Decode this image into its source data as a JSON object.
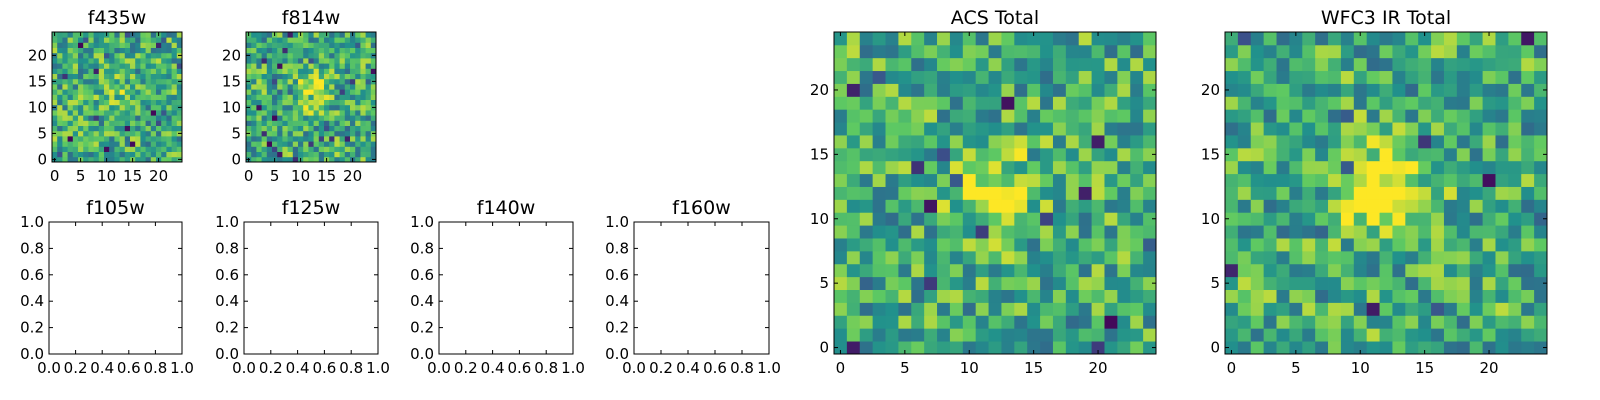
{
  "colormap": [
    "#440154",
    "#3b528b",
    "#21918c",
    "#5ec962",
    "#fde725"
  ],
  "chart_data": [
    {
      "type": "heatmap",
      "title": "f435w",
      "xlabel": "",
      "ylabel": "",
      "xticks": [
        "0",
        "5",
        "10",
        "15",
        "20"
      ],
      "yticks": [
        "0",
        "5",
        "10",
        "15",
        "20"
      ],
      "xlim": [
        -0.5,
        24.5
      ],
      "ylim": [
        -0.5,
        24.5
      ],
      "grid_size": 25,
      "peak": [
        12,
        13
      ],
      "peak_strength": 0.12,
      "seed": 11
    },
    {
      "type": "heatmap",
      "title": "f814w",
      "xlabel": "",
      "ylabel": "",
      "xticks": [
        "0",
        "5",
        "10",
        "15",
        "20"
      ],
      "yticks": [
        "0",
        "5",
        "10",
        "15",
        "20"
      ],
      "xlim": [
        -0.5,
        24.5
      ],
      "ylim": [
        -0.5,
        24.5
      ],
      "grid_size": 25,
      "peak": [
        12,
        13
      ],
      "peak_strength": 0.35,
      "seed": 23
    },
    {
      "type": "heatmap",
      "title": "ACS Total",
      "xlabel": "",
      "ylabel": "",
      "xticks": [
        "0",
        "5",
        "10",
        "15",
        "20"
      ],
      "yticks": [
        "0",
        "5",
        "10",
        "15",
        "20"
      ],
      "xlim": [
        -0.5,
        24.5
      ],
      "ylim": [
        -0.5,
        24.5
      ],
      "grid_size": 25,
      "peak": [
        12,
        12
      ],
      "peak_strength": 0.35,
      "seed": 37
    },
    {
      "type": "heatmap",
      "title": "WFC3 IR Total",
      "xlabel": "",
      "ylabel": "",
      "xticks": [
        "0",
        "5",
        "10",
        "15",
        "20"
      ],
      "yticks": [
        "0",
        "5",
        "10",
        "15",
        "20"
      ],
      "xlim": [
        -0.5,
        24.5
      ],
      "ylim": [
        -0.5,
        24.5
      ],
      "grid_size": 25,
      "peak": [
        12,
        12
      ],
      "peak_strength": 0.55,
      "seed": 53
    },
    {
      "type": "empty",
      "title": "f105w",
      "xticks": [
        "0.0",
        "0.2",
        "0.4",
        "0.6",
        "0.8",
        "1.0"
      ],
      "yticks": [
        "0.0",
        "0.2",
        "0.4",
        "0.6",
        "0.8",
        "1.0"
      ],
      "xlim": [
        0,
        1
      ],
      "ylim": [
        0,
        1
      ]
    },
    {
      "type": "empty",
      "title": "f125w",
      "xticks": [
        "0.0",
        "0.2",
        "0.4",
        "0.6",
        "0.8",
        "1.0"
      ],
      "yticks": [
        "0.0",
        "0.2",
        "0.4",
        "0.6",
        "0.8",
        "1.0"
      ],
      "xlim": [
        0,
        1
      ],
      "ylim": [
        0,
        1
      ]
    },
    {
      "type": "empty",
      "title": "f140w",
      "xticks": [
        "0.0",
        "0.2",
        "0.4",
        "0.6",
        "0.8",
        "1.0"
      ],
      "yticks": [
        "0.0",
        "0.2",
        "0.4",
        "0.6",
        "0.8",
        "1.0"
      ],
      "xlim": [
        0,
        1
      ],
      "ylim": [
        0,
        1
      ]
    },
    {
      "type": "empty",
      "title": "f160w",
      "xticks": [
        "0.0",
        "0.2",
        "0.4",
        "0.6",
        "0.8",
        "1.0"
      ],
      "yticks": [
        "0.0",
        "0.2",
        "0.4",
        "0.6",
        "0.8",
        "1.0"
      ],
      "xlim": [
        0,
        1
      ],
      "ylim": [
        0,
        1
      ]
    }
  ]
}
